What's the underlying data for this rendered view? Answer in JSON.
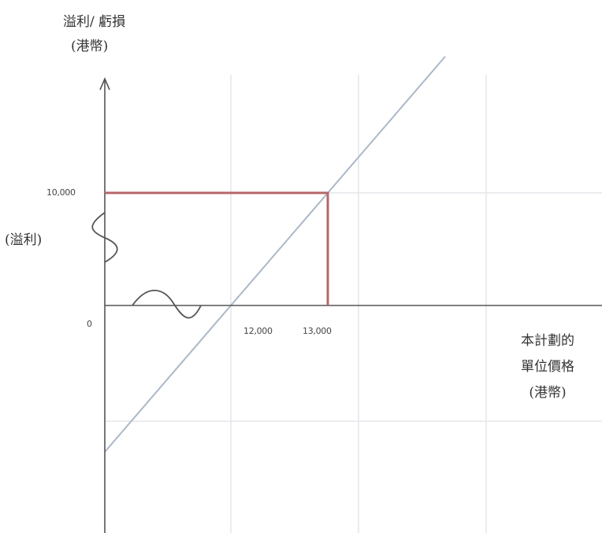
{
  "chart_data": {
    "type": "line",
    "ylabel_line1": "溢利/ 虧損",
    "ylabel_line2": "(港幣)",
    "profit_region_label": "(溢利)",
    "xlabel_line1": "本計劃的",
    "xlabel_line2": "單位價格",
    "xlabel_line3": "(港幣)",
    "x_tick_labels": [
      "12,000",
      "13,000"
    ],
    "y_tick_labels": [
      "10,000",
      "0"
    ],
    "series": [
      {
        "type": "diagonal",
        "color": "#aab8c8",
        "x": [
          12000,
          13000
        ],
        "y": [
          0,
          10000
        ]
      },
      {
        "type": "payoff",
        "color": "#b5676a",
        "x": [
          12000,
          13000,
          13000
        ],
        "y": [
          10000,
          10000,
          0
        ]
      }
    ],
    "axis_break_symbols": true,
    "colors": {
      "axis": "#555555",
      "grid": "#e4e6ea",
      "payoff": "#b5676a",
      "diagonal": "#aab8c8"
    }
  }
}
